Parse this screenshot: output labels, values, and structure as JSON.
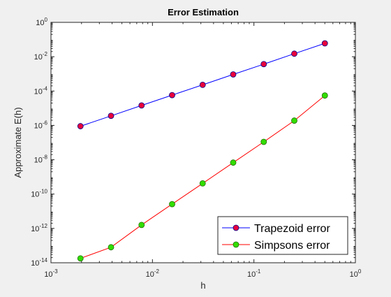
{
  "chart_data": {
    "type": "line",
    "title": "Error Estimation",
    "xlabel": "h",
    "ylabel": "Approximate E(h)",
    "xscale": "log",
    "yscale": "log",
    "xlim": [
      0.001,
      1
    ],
    "ylim": [
      1e-14,
      1
    ],
    "x_ticks": [
      {
        "base": "10",
        "exp": "-3",
        "value": 0.001
      },
      {
        "base": "10",
        "exp": "-2",
        "value": 0.01
      },
      {
        "base": "10",
        "exp": "-1",
        "value": 0.1
      },
      {
        "base": "10",
        "exp": "0",
        "value": 1
      }
    ],
    "y_ticks": [
      {
        "base": "10",
        "exp": "0",
        "value": 1
      },
      {
        "base": "10",
        "exp": "-2",
        "value": 0.01
      },
      {
        "base": "10",
        "exp": "-4",
        "value": 0.0001
      },
      {
        "base": "10",
        "exp": "-6",
        "value": 1e-06
      },
      {
        "base": "10",
        "exp": "-8",
        "value": 1e-08
      },
      {
        "base": "10",
        "exp": "-10",
        "value": 1e-10
      },
      {
        "base": "10",
        "exp": "-12",
        "value": 1e-12
      },
      {
        "base": "10",
        "exp": "-14",
        "value": 1e-14
      }
    ],
    "x": [
      0.001953125,
      0.00390625,
      0.0078125,
      0.015625,
      0.03125,
      0.0625,
      0.125,
      0.25,
      0.5
    ],
    "series": [
      {
        "name": "Trapezoid error",
        "values": [
          9e-07,
          3.6e-06,
          1.45e-05,
          5.8e-05,
          0.00023,
          0.00093,
          0.0037,
          0.015,
          0.06
        ],
        "line_color": "#0000ff",
        "marker_face": "#e8003c",
        "marker_edge": "#00008b"
      },
      {
        "name": "Simpsons error",
        "values": [
          1.8e-14,
          8e-14,
          1.6e-12,
          2.6e-11,
          4.2e-10,
          6.8e-09,
          1.1e-07,
          1.9e-06,
          5.5e-05
        ],
        "line_color": "#ff0000",
        "marker_face": "#33dd00",
        "marker_edge": "#1f6e00"
      }
    ],
    "grid": false,
    "legend_position": "bottom-right"
  }
}
